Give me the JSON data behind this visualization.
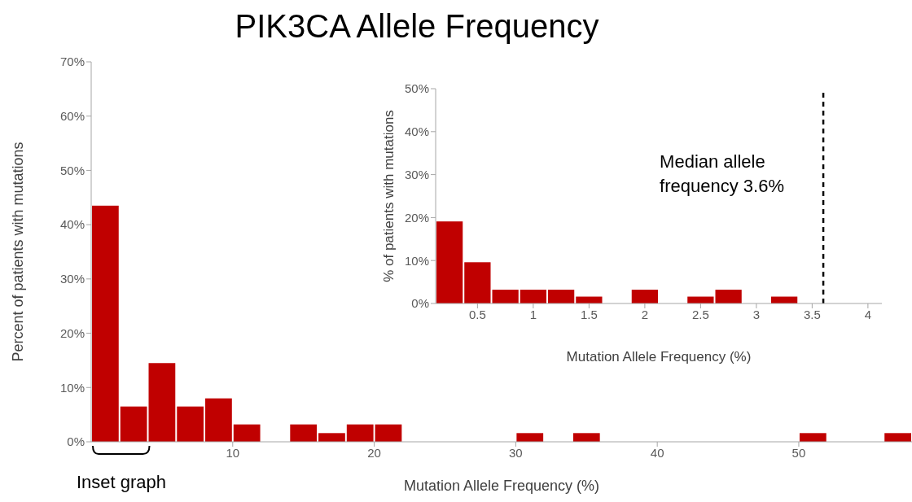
{
  "chart_data": [
    {
      "type": "histogram",
      "title": "PIK3CA Allele Frequency",
      "xlabel": "Mutation Allele Frequency (%)",
      "ylabel": "Percent of patients with mutations",
      "color": "#c00000",
      "bins": [
        0,
        2,
        4,
        6,
        8,
        10,
        12,
        14,
        16,
        18,
        20,
        22,
        24,
        26,
        28,
        30,
        32,
        34,
        36,
        38,
        40,
        42,
        44,
        46,
        48,
        50,
        52,
        54,
        56,
        58
      ],
      "values": [
        43.5,
        6.5,
        14.5,
        6.5,
        8,
        3.2,
        0,
        3.2,
        1.6,
        3.2,
        3.2,
        0,
        0,
        0,
        0,
        1.6,
        0,
        1.6,
        0,
        0,
        0,
        0,
        0,
        0,
        0,
        1.6,
        0,
        0,
        1.6
      ],
      "xlim": [
        0,
        58
      ],
      "xticks": [
        10,
        20,
        30,
        40,
        50
      ],
      "ylim": [
        0,
        70
      ],
      "yticks": [
        {
          "value": 0,
          "label": "0%"
        },
        {
          "value": 10,
          "label": "10%"
        },
        {
          "value": 20,
          "label": "20%"
        },
        {
          "value": 30,
          "label": "30%"
        },
        {
          "value": 40,
          "label": "40%"
        },
        {
          "value": 50,
          "label": "50%"
        },
        {
          "value": 60,
          "label": "60%"
        },
        {
          "value": 70,
          "label": "70%"
        }
      ],
      "annotations": [
        "Inset graph"
      ]
    },
    {
      "type": "histogram",
      "xlabel": "Mutation Allele Frequency (%)",
      "ylabel": "% of patients with mutations",
      "color": "#c00000",
      "bins": [
        0.125,
        0.375,
        0.625,
        0.875,
        1.125,
        1.375,
        1.625,
        1.875,
        2.125,
        2.375,
        2.625,
        2.875,
        3.125,
        3.375,
        3.625,
        3.875,
        4.125
      ],
      "values": [
        19.1,
        9.6,
        3.2,
        3.2,
        3.2,
        1.6,
        0,
        3.2,
        0,
        1.6,
        3.2,
        0,
        1.6,
        0,
        0,
        0
      ],
      "xlim": [
        0.125,
        4.125
      ],
      "xticks": [
        0.5,
        1,
        1.5,
        2,
        2.5,
        3,
        3.5,
        4
      ],
      "ylim": [
        0,
        50
      ],
      "yticks": [
        {
          "value": 0,
          "label": "0%"
        },
        {
          "value": 10,
          "label": "10%"
        },
        {
          "value": 20,
          "label": "20%"
        },
        {
          "value": 30,
          "label": "30%"
        },
        {
          "value": 40,
          "label": "40%"
        },
        {
          "value": 50,
          "label": "50%"
        }
      ],
      "ref_lines": [
        {
          "axis": "x",
          "value": 3.6,
          "label": "Median allele frequency 3.6%",
          "color": "#000000",
          "line_style": "dashed"
        }
      ]
    }
  ]
}
